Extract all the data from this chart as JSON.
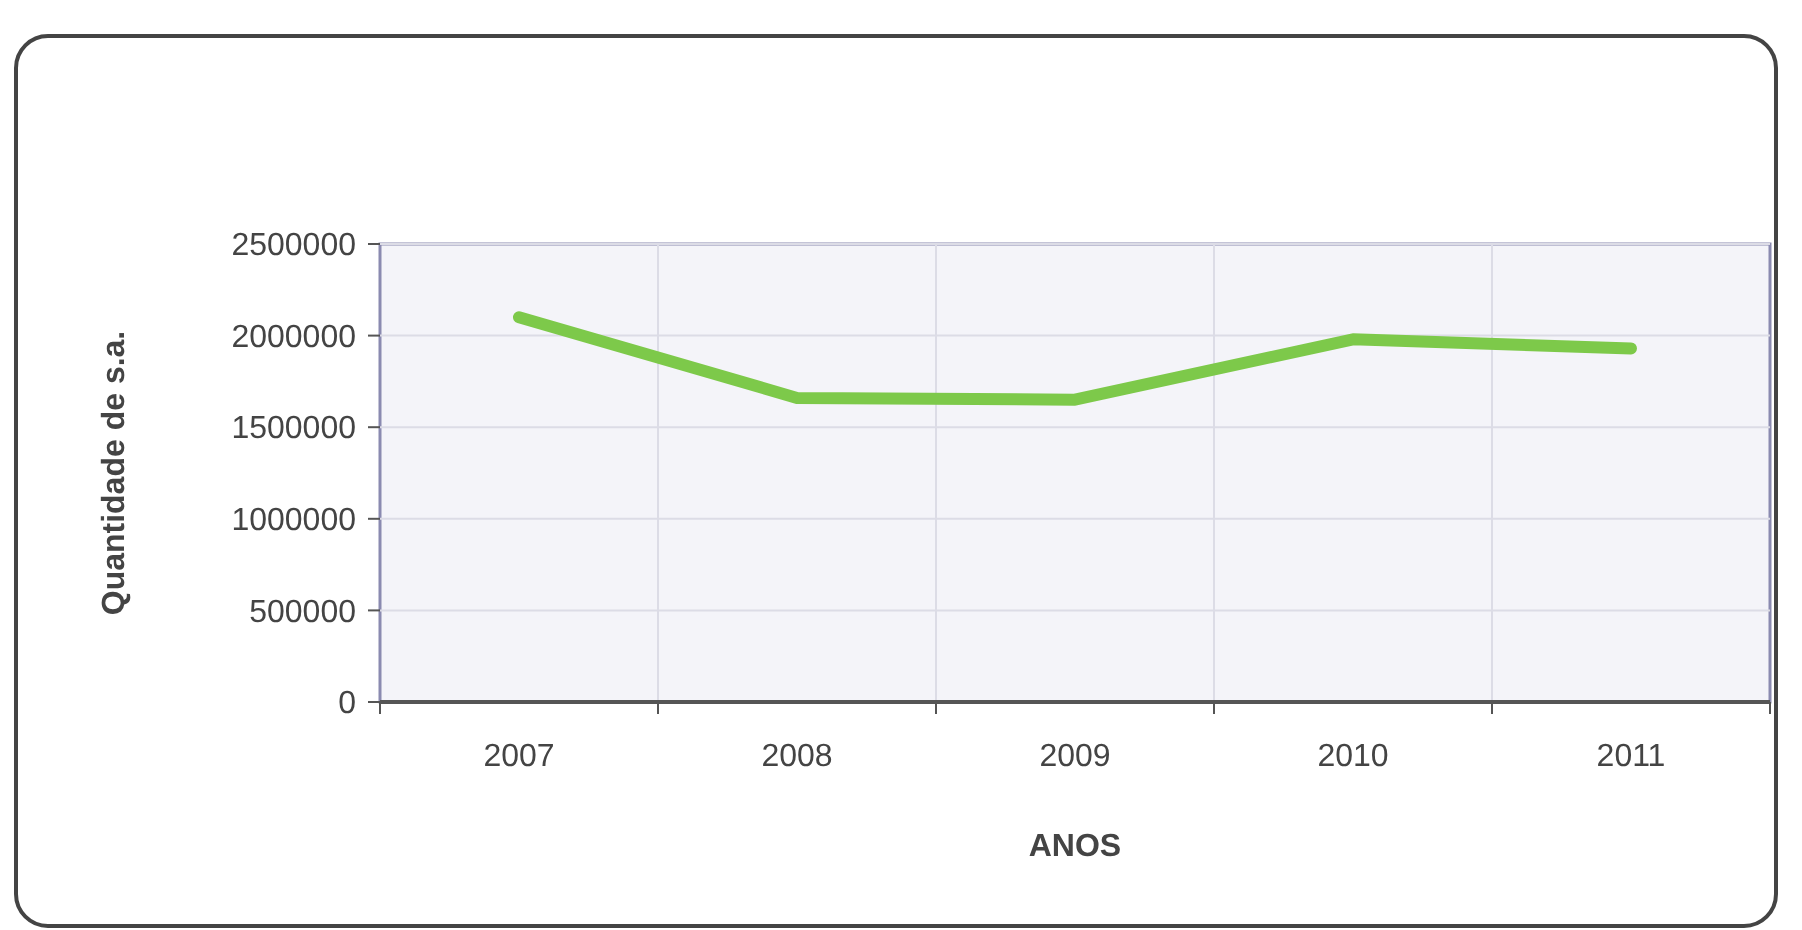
{
  "chart_data": {
    "type": "line",
    "xlabel": "ANOS",
    "ylabel": "Quantidade de s.a.",
    "categories": [
      "2007",
      "2008",
      "2009",
      "2010",
      "2011"
    ],
    "series": [
      {
        "color": "#7dc94a",
        "values": [
          2100000,
          1660000,
          1650000,
          1980000,
          1930000
        ]
      }
    ],
    "ylim": [
      0,
      2500000
    ],
    "yticks": [
      0,
      500000,
      1000000,
      1500000,
      2000000,
      2500000
    ],
    "grid": true,
    "marker": "none",
    "line_style": "solid"
  }
}
